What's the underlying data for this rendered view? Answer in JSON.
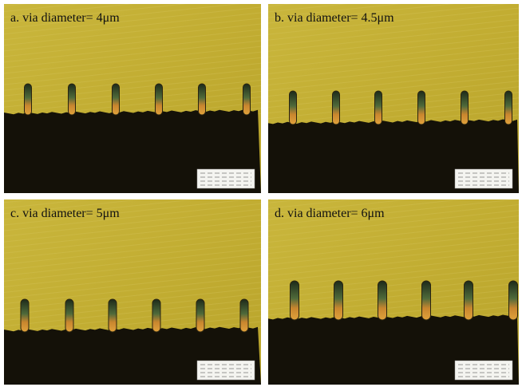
{
  "panels": [
    {
      "label": "a. via diameter= 4μm"
    },
    {
      "label": "b. via diameter= 4.5μm"
    },
    {
      "label": "c. via diameter= 5μm"
    },
    {
      "label": "d. via diameter= 6μm"
    }
  ]
}
